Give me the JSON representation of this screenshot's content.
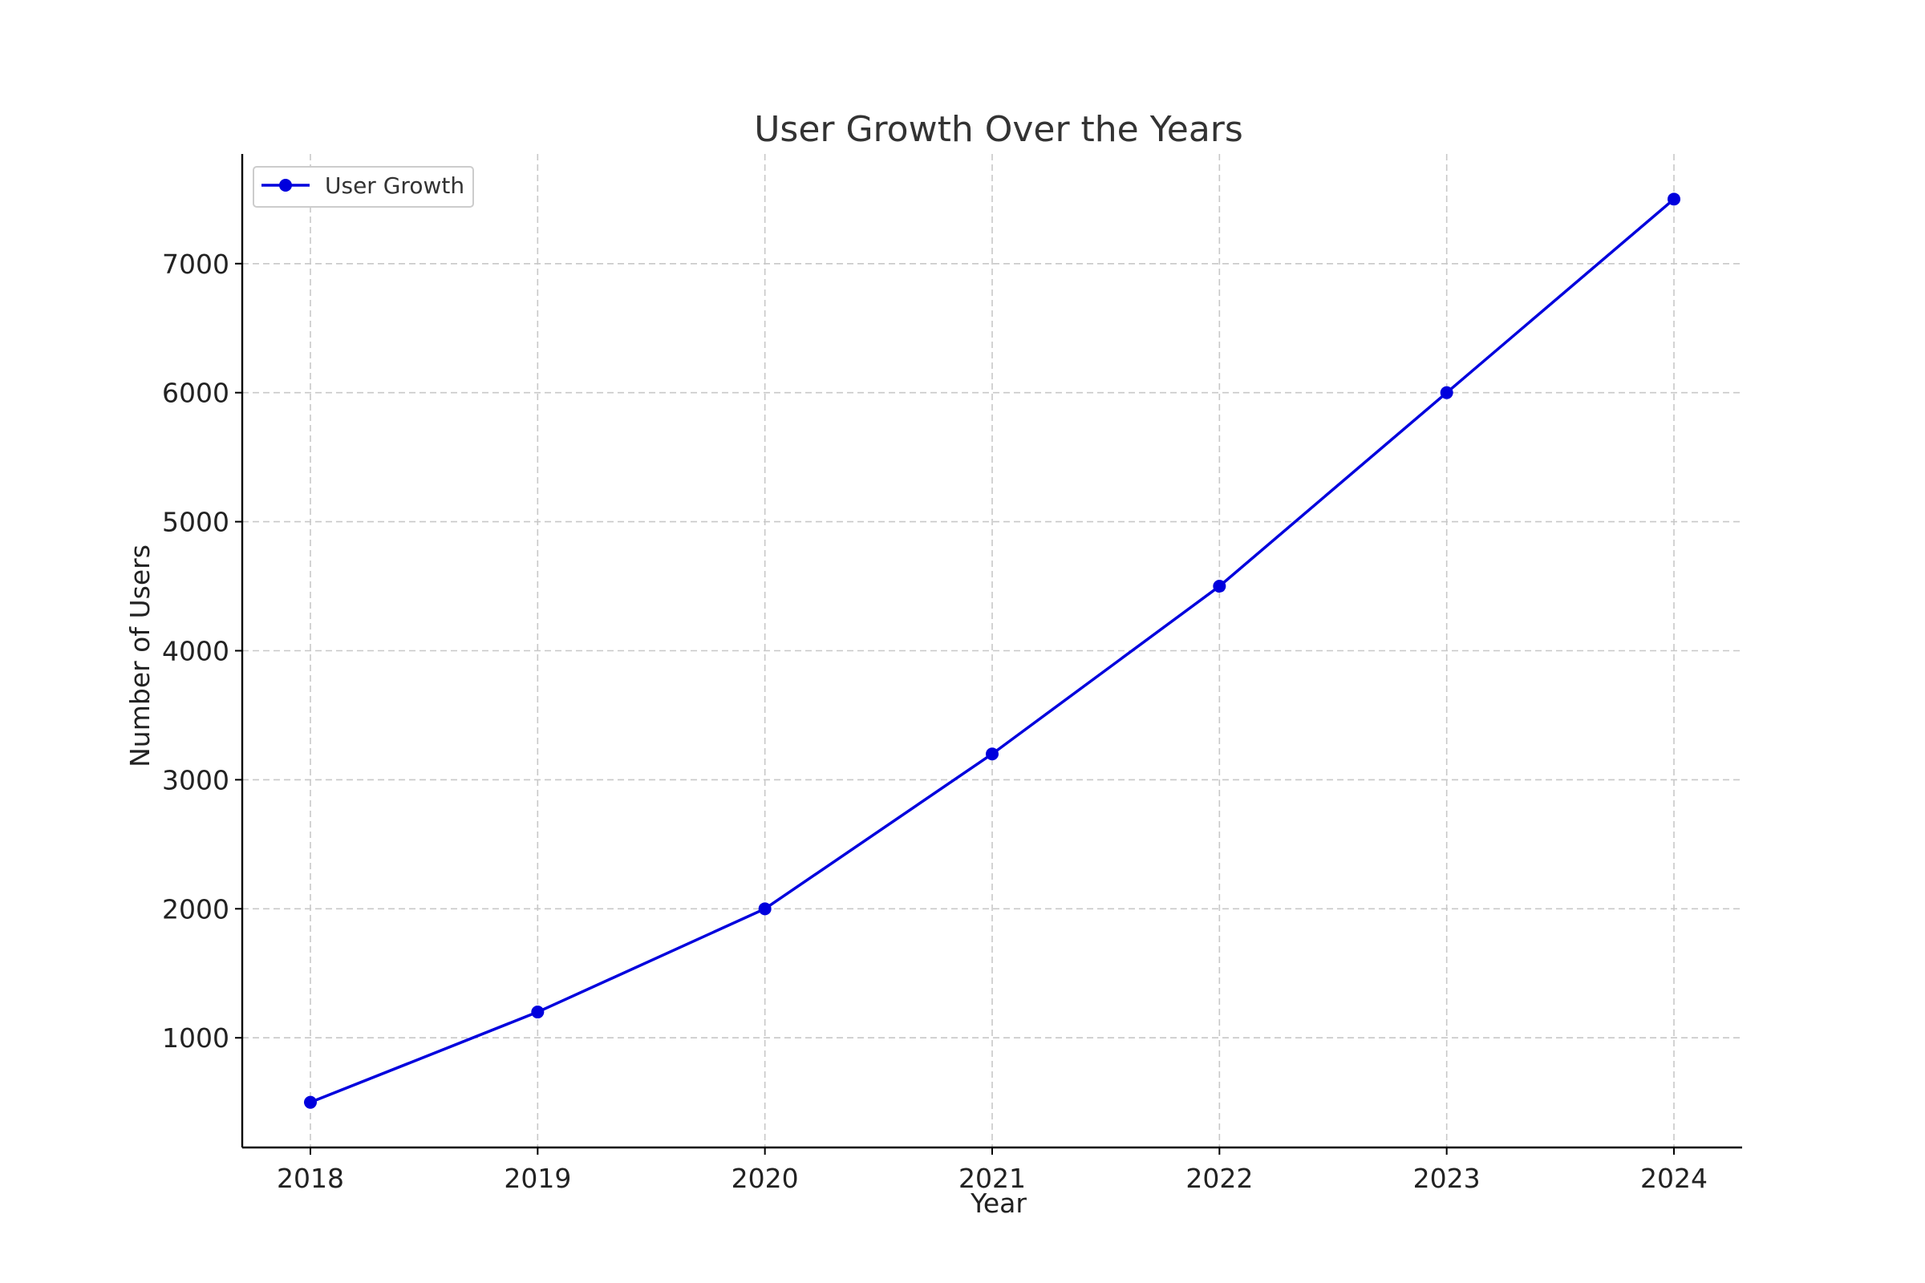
{
  "chart_data": {
    "type": "line",
    "title": "User Growth Over the Years",
    "xlabel": "Year",
    "ylabel": "Number of Users",
    "x": [
      2018,
      2019,
      2020,
      2021,
      2022,
      2023,
      2024
    ],
    "series": [
      {
        "name": "User Growth",
        "values": [
          500,
          1200,
          2000,
          3200,
          4500,
          6000,
          7500
        ],
        "color": "#0000dd"
      }
    ],
    "xlim": [
      2017.7,
      2024.3
    ],
    "ylim": [
      150,
      7850
    ],
    "yticks": [
      1000,
      2000,
      3000,
      4000,
      5000,
      6000,
      7000
    ],
    "grid": true,
    "legend": "top-left"
  }
}
